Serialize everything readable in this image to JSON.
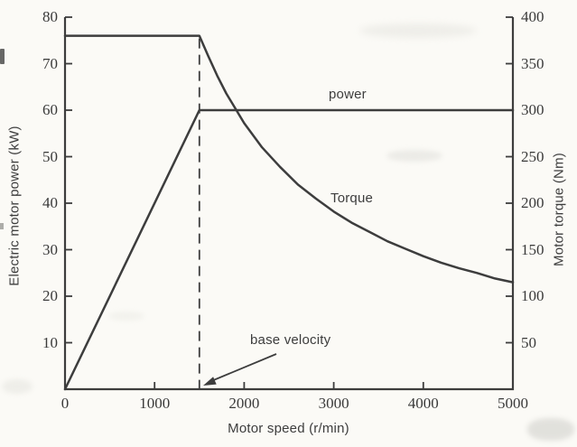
{
  "page": {
    "background": "#fbfaf6",
    "ink": "#3d3d3d"
  },
  "labels": {
    "power": "power",
    "torque": "Torque",
    "base_velocity": "base velocity"
  },
  "chart_data": {
    "type": "line",
    "title": "",
    "xlabel": "Motor speed (r/min)",
    "ylabel_left": "Electric motor power (kW)",
    "ylabel_right": "Motor torque (Nm)",
    "xlim": [
      0,
      5000
    ],
    "ylim_left": [
      0,
      80
    ],
    "ylim_right": [
      0,
      400
    ],
    "x_ticks": [
      0,
      1000,
      2000,
      3000,
      4000,
      5000
    ],
    "y_ticks_left": [
      10,
      20,
      30,
      40,
      50,
      60,
      70,
      80
    ],
    "y_ticks_right": [
      50,
      100,
      150,
      200,
      250,
      300,
      350,
      400
    ],
    "grid": false,
    "legend_position": "inline-labels",
    "base_velocity_rpm": 1500,
    "series": [
      {
        "name": "power",
        "axis": "left",
        "units": "kW",
        "points": [
          [
            0,
            0
          ],
          [
            1500,
            60
          ],
          [
            5000,
            60
          ]
        ]
      },
      {
        "name": "Torque",
        "axis": "right",
        "units": "Nm",
        "points": [
          [
            0,
            380
          ],
          [
            1500,
            380
          ],
          [
            1600,
            358
          ],
          [
            1700,
            337
          ],
          [
            1800,
            318
          ],
          [
            1900,
            302
          ],
          [
            2000,
            286
          ],
          [
            2200,
            260
          ],
          [
            2400,
            239
          ],
          [
            2600,
            220
          ],
          [
            2800,
            205
          ],
          [
            3000,
            191
          ],
          [
            3200,
            179
          ],
          [
            3400,
            169
          ],
          [
            3600,
            159
          ],
          [
            3800,
            151
          ],
          [
            4000,
            143
          ],
          [
            4200,
            136
          ],
          [
            4400,
            130
          ],
          [
            4600,
            125
          ],
          [
            4800,
            119
          ],
          [
            5000,
            115
          ]
        ]
      }
    ],
    "annotations": [
      {
        "text": "base velocity",
        "x": 1500,
        "dashed_vertical_line": true,
        "arrow": true
      }
    ]
  }
}
